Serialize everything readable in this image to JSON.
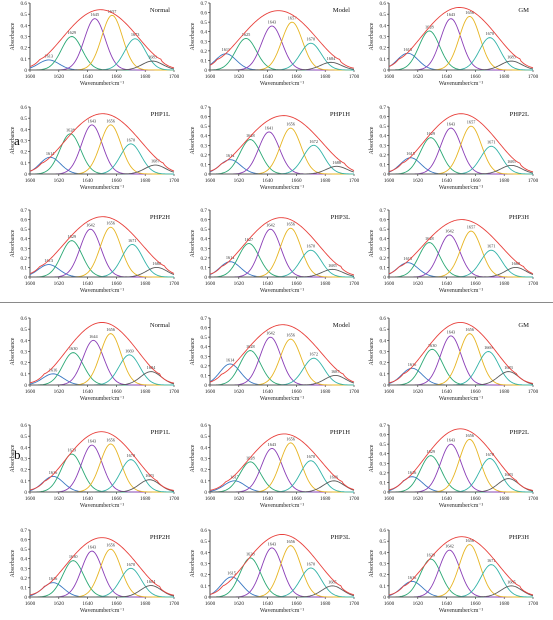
{
  "figure": {
    "section_a_label": "a",
    "section_b_label": "b",
    "colors": {
      "envelope": "#e8413c",
      "component_1": "#3a78c2",
      "component_2": "#2aa874",
      "component_3": "#8b3fb7",
      "component_4": "#e7b523",
      "component_5": "#33b3a8",
      "component_6": "#5a5a5a",
      "axis": "#222222"
    }
  },
  "chart_data": [
    {
      "type": "area",
      "section": "a",
      "title": "Normal",
      "xlabel": "Wavenumber/cm⁻¹",
      "ylabel": "Absorbance",
      "xlim": [
        1600,
        1700
      ],
      "ylim": [
        0,
        0.6
      ],
      "yticks": [
        0,
        0.1,
        0.2,
        0.3,
        0.4,
        0.5,
        0.6
      ],
      "envelope_peak": 0.54,
      "peaks": [
        {
          "center": 1613,
          "height": 0.09,
          "label": "1613"
        },
        {
          "center": 1629,
          "height": 0.3,
          "label": "1629"
        },
        {
          "center": 1645,
          "height": 0.46,
          "label": "1645"
        },
        {
          "center": 1657,
          "height": 0.49,
          "label": "1657"
        },
        {
          "center": 1673,
          "height": 0.28,
          "label": "1673"
        },
        {
          "center": 1685,
          "height": 0.08,
          "label": "1685"
        }
      ]
    },
    {
      "type": "area",
      "section": "a",
      "title": "Model",
      "xlabel": "Wavenumber/cm⁻¹",
      "ylabel": "Absorbance",
      "xlim": [
        1600,
        1700
      ],
      "ylim": [
        0,
        0.7
      ],
      "yticks": [
        0,
        0.1,
        0.2,
        0.3,
        0.4,
        0.5,
        0.6,
        0.7
      ],
      "envelope_peak": 0.62,
      "peaks": [
        {
          "center": 1611,
          "height": 0.17,
          "label": "1611"
        },
        {
          "center": 1625,
          "height": 0.33,
          "label": "1625"
        },
        {
          "center": 1643,
          "height": 0.46,
          "label": "1643"
        },
        {
          "center": 1657,
          "height": 0.5,
          "label": "1657"
        },
        {
          "center": 1670,
          "height": 0.28,
          "label": "1670"
        },
        {
          "center": 1684,
          "height": 0.08,
          "label": "1684"
        }
      ]
    },
    {
      "type": "area",
      "section": "a",
      "title": "GM",
      "xlabel": "Wavenumber/cm⁻¹",
      "ylabel": "Absorbance",
      "xlim": [
        1600,
        1700
      ],
      "ylim": [
        0,
        0.6
      ],
      "yticks": [
        0,
        0.1,
        0.2,
        0.3,
        0.4,
        0.5,
        0.6
      ],
      "envelope_peak": 0.56,
      "peaks": [
        {
          "center": 1613,
          "height": 0.15,
          "label": "1613"
        },
        {
          "center": 1628,
          "height": 0.35,
          "label": "1628"
        },
        {
          "center": 1643,
          "height": 0.46,
          "label": "1643"
        },
        {
          "center": 1656,
          "height": 0.48,
          "label": "1656"
        },
        {
          "center": 1670,
          "height": 0.29,
          "label": "1670"
        },
        {
          "center": 1685,
          "height": 0.08,
          "label": "1685"
        }
      ]
    },
    {
      "type": "area",
      "section": "a",
      "title": "PHP1L",
      "xlabel": "Wavenumber/cm⁻¹",
      "ylabel": "Absorbance",
      "xlim": [
        1600,
        1700
      ],
      "ylim": [
        0,
        0.6
      ],
      "yticks": [
        0,
        0.1,
        0.2,
        0.3,
        0.4,
        0.5,
        0.6
      ],
      "envelope_peak": 0.54,
      "peaks": [
        {
          "center": 1614,
          "height": 0.15,
          "label": "1614"
        },
        {
          "center": 1628,
          "height": 0.36,
          "label": "1628"
        },
        {
          "center": 1643,
          "height": 0.44,
          "label": "1643"
        },
        {
          "center": 1656,
          "height": 0.44,
          "label": "1656"
        },
        {
          "center": 1670,
          "height": 0.27,
          "label": "1670"
        },
        {
          "center": 1687,
          "height": 0.08,
          "label": "1687"
        }
      ]
    },
    {
      "type": "area",
      "section": "a",
      "title": "PHP1H",
      "xlabel": "Wavenumber/cm⁻¹",
      "ylabel": "Absorbance",
      "xlim": [
        1600,
        1700
      ],
      "ylim": [
        0,
        0.7
      ],
      "yticks": [
        0,
        0.1,
        0.2,
        0.3,
        0.4,
        0.5,
        0.6,
        0.7
      ],
      "envelope_peak": 0.61,
      "peaks": [
        {
          "center": 1614,
          "height": 0.15,
          "label": "1614"
        },
        {
          "center": 1628,
          "height": 0.36,
          "label": "1628"
        },
        {
          "center": 1641,
          "height": 0.44,
          "label": "1641"
        },
        {
          "center": 1656,
          "height": 0.48,
          "label": "1656"
        },
        {
          "center": 1672,
          "height": 0.3,
          "label": "1672"
        },
        {
          "center": 1688,
          "height": 0.08,
          "label": "1688"
        }
      ]
    },
    {
      "type": "area",
      "section": "a",
      "title": "PHP2L",
      "xlabel": "Wavenumber/cm⁻¹",
      "ylabel": "Absorbance",
      "xlim": [
        1600,
        1700
      ],
      "ylim": [
        0,
        0.7
      ],
      "yticks": [
        0,
        0.1,
        0.2,
        0.3,
        0.4,
        0.5,
        0.6,
        0.7
      ],
      "envelope_peak": 0.63,
      "peaks": [
        {
          "center": 1615,
          "height": 0.17,
          "label": "1615"
        },
        {
          "center": 1629,
          "height": 0.38,
          "label": "1629"
        },
        {
          "center": 1643,
          "height": 0.48,
          "label": "1643"
        },
        {
          "center": 1657,
          "height": 0.5,
          "label": "1657"
        },
        {
          "center": 1671,
          "height": 0.29,
          "label": "1671"
        },
        {
          "center": 1685,
          "height": 0.09,
          "label": "1685"
        }
      ]
    },
    {
      "type": "area",
      "section": "a",
      "title": "PHP2H",
      "xlabel": "Wavenumber/cm⁻¹",
      "ylabel": "Absorbance",
      "xlim": [
        1600,
        1700
      ],
      "ylim": [
        0,
        0.7
      ],
      "yticks": [
        0,
        0.1,
        0.2,
        0.3,
        0.4,
        0.5,
        0.6,
        0.7
      ],
      "envelope_peak": 0.63,
      "peaks": [
        {
          "center": 1613,
          "height": 0.13,
          "label": "1613"
        },
        {
          "center": 1629,
          "height": 0.38,
          "label": "1629"
        },
        {
          "center": 1642,
          "height": 0.5,
          "label": "1642"
        },
        {
          "center": 1656,
          "height": 0.52,
          "label": "1656"
        },
        {
          "center": 1671,
          "height": 0.34,
          "label": "1671"
        },
        {
          "center": 1688,
          "height": 0.1,
          "label": "1688"
        }
      ]
    },
    {
      "type": "area",
      "section": "a",
      "title": "PHP3L",
      "xlabel": "Wavenumber/cm⁻¹",
      "ylabel": "Absorbance",
      "xlim": [
        1600,
        1700
      ],
      "ylim": [
        0,
        0.7
      ],
      "yticks": [
        0,
        0.1,
        0.2,
        0.3,
        0.4,
        0.5,
        0.6,
        0.7
      ],
      "envelope_peak": 0.62,
      "peaks": [
        {
          "center": 1614,
          "height": 0.16,
          "label": "1614"
        },
        {
          "center": 1627,
          "height": 0.35,
          "label": "1627"
        },
        {
          "center": 1642,
          "height": 0.5,
          "label": "1642"
        },
        {
          "center": 1656,
          "height": 0.51,
          "label": "1656"
        },
        {
          "center": 1670,
          "height": 0.28,
          "label": "1670"
        },
        {
          "center": 1685,
          "height": 0.08,
          "label": "1685"
        }
      ]
    },
    {
      "type": "area",
      "section": "a",
      "title": "PHP3H",
      "xlabel": "Wavenumber/cm⁻¹",
      "ylabel": "Absorbance",
      "xlim": [
        1600,
        1700
      ],
      "ylim": [
        0,
        0.7
      ],
      "yticks": [
        0,
        0.1,
        0.2,
        0.3,
        0.4,
        0.5,
        0.6,
        0.7
      ],
      "envelope_peak": 0.6,
      "peaks": [
        {
          "center": 1613,
          "height": 0.15,
          "label": "1613"
        },
        {
          "center": 1628,
          "height": 0.36,
          "label": "1628"
        },
        {
          "center": 1642,
          "height": 0.44,
          "label": "1642"
        },
        {
          "center": 1657,
          "height": 0.48,
          "label": "1657"
        },
        {
          "center": 1671,
          "height": 0.28,
          "label": "1671"
        },
        {
          "center": 1688,
          "height": 0.1,
          "label": "1688"
        }
      ]
    },
    {
      "type": "area",
      "section": "b",
      "title": "Normal",
      "xlabel": "Wavenumber/cm⁻¹",
      "ylabel": "Absorbance",
      "xlim": [
        1600,
        1700
      ],
      "ylim": [
        0,
        0.6
      ],
      "yticks": [
        0,
        0.1,
        0.2,
        0.3,
        0.4,
        0.5,
        0.6
      ],
      "envelope_peak": 0.56,
      "peaks": [
        {
          "center": 1616,
          "height": 0.1,
          "label": "1616"
        },
        {
          "center": 1630,
          "height": 0.29,
          "label": "1630"
        },
        {
          "center": 1644,
          "height": 0.4,
          "label": "1644"
        },
        {
          "center": 1656,
          "height": 0.46,
          "label": "1656"
        },
        {
          "center": 1669,
          "height": 0.27,
          "label": "1669"
        },
        {
          "center": 1684,
          "height": 0.12,
          "label": "1684"
        }
      ]
    },
    {
      "type": "area",
      "section": "b",
      "title": "Model",
      "xlabel": "Wavenumber/cm⁻¹",
      "ylabel": "Absorbance",
      "xlim": [
        1600,
        1700
      ],
      "ylim": [
        0,
        0.7
      ],
      "yticks": [
        0,
        0.1,
        0.2,
        0.3,
        0.4,
        0.5,
        0.6,
        0.7
      ],
      "envelope_peak": 0.63,
      "peaks": [
        {
          "center": 1614,
          "height": 0.22,
          "label": "1614"
        },
        {
          "center": 1628,
          "height": 0.36,
          "label": "1628"
        },
        {
          "center": 1642,
          "height": 0.5,
          "label": "1642"
        },
        {
          "center": 1656,
          "height": 0.48,
          "label": "1656"
        },
        {
          "center": 1672,
          "height": 0.28,
          "label": "1672"
        },
        {
          "center": 1687,
          "height": 0.1,
          "label": "1687"
        }
      ]
    },
    {
      "type": "area",
      "section": "b",
      "title": "GM",
      "xlabel": "Wavenumber/cm⁻¹",
      "ylabel": "Absorbance",
      "xlim": [
        1600,
        1700
      ],
      "ylim": [
        0,
        0.6
      ],
      "yticks": [
        0,
        0.1,
        0.2,
        0.3,
        0.4,
        0.5,
        0.6
      ],
      "envelope_peak": 0.56,
      "peaks": [
        {
          "center": 1616,
          "height": 0.15,
          "label": "1616"
        },
        {
          "center": 1630,
          "height": 0.32,
          "label": "1630"
        },
        {
          "center": 1643,
          "height": 0.44,
          "label": "1643"
        },
        {
          "center": 1656,
          "height": 0.46,
          "label": "1656"
        },
        {
          "center": 1669,
          "height": 0.3,
          "label": "1669"
        },
        {
          "center": 1683,
          "height": 0.12,
          "label": "1683"
        }
      ]
    },
    {
      "type": "area",
      "section": "b",
      "title": "PHP1L",
      "xlabel": "Wavenumber/cm⁻¹",
      "ylabel": "Absorbance",
      "xlim": [
        1600,
        1700
      ],
      "ylim": [
        0,
        0.6
      ],
      "yticks": [
        0,
        0.1,
        0.2,
        0.3,
        0.4,
        0.5,
        0.6
      ],
      "envelope_peak": 0.54,
      "peaks": [
        {
          "center": 1616,
          "height": 0.14,
          "label": "1616"
        },
        {
          "center": 1629,
          "height": 0.34,
          "label": "1629"
        },
        {
          "center": 1643,
          "height": 0.42,
          "label": "1643"
        },
        {
          "center": 1656,
          "height": 0.43,
          "label": "1656"
        },
        {
          "center": 1670,
          "height": 0.29,
          "label": "1670"
        },
        {
          "center": 1683,
          "height": 0.11,
          "label": "1683"
        }
      ]
    },
    {
      "type": "area",
      "section": "b",
      "title": "PHP1H",
      "xlabel": "Wavenumber/cm⁻¹",
      "ylabel": "Absorbance",
      "xlim": [
        1600,
        1700
      ],
      "ylim": [
        0,
        0.6
      ],
      "yticks": [
        0,
        0.1,
        0.2,
        0.3,
        0.4,
        0.5,
        0.6
      ],
      "envelope_peak": 0.52,
      "peaks": [
        {
          "center": 1617,
          "height": 0.1,
          "label": "1617"
        },
        {
          "center": 1628,
          "height": 0.27,
          "label": "1628"
        },
        {
          "center": 1643,
          "height": 0.39,
          "label": "1643"
        },
        {
          "center": 1656,
          "height": 0.44,
          "label": "1656"
        },
        {
          "center": 1670,
          "height": 0.28,
          "label": "1670"
        },
        {
          "center": 1686,
          "height": 0.1,
          "label": "1686"
        }
      ]
    },
    {
      "type": "area",
      "section": "b",
      "title": "PHP2L",
      "xlabel": "Wavenumber/cm⁻¹",
      "ylabel": "Absorbance",
      "xlim": [
        1600,
        1700
      ],
      "ylim": [
        0,
        0.7
      ],
      "yticks": [
        0,
        0.1,
        0.2,
        0.3,
        0.4,
        0.5,
        0.6,
        0.7
      ],
      "envelope_peak": 0.66,
      "peaks": [
        {
          "center": 1616,
          "height": 0.16,
          "label": "1616"
        },
        {
          "center": 1629,
          "height": 0.38,
          "label": "1629"
        },
        {
          "center": 1643,
          "height": 0.5,
          "label": "1643"
        },
        {
          "center": 1656,
          "height": 0.55,
          "label": "1656"
        },
        {
          "center": 1670,
          "height": 0.35,
          "label": "1670"
        },
        {
          "center": 1683,
          "height": 0.14,
          "label": "1683"
        }
      ]
    },
    {
      "type": "area",
      "section": "b",
      "title": "PHP2H",
      "xlabel": "Wavenumber/cm⁻¹",
      "ylabel": "Absorbance",
      "xlim": [
        1600,
        1700
      ],
      "ylim": [
        0,
        0.7
      ],
      "yticks": [
        0,
        0.1,
        0.2,
        0.3,
        0.4,
        0.5,
        0.6,
        0.7
      ],
      "envelope_peak": 0.62,
      "peaks": [
        {
          "center": 1616,
          "height": 0.15,
          "label": "1616"
        },
        {
          "center": 1630,
          "height": 0.38,
          "label": "1630"
        },
        {
          "center": 1643,
          "height": 0.48,
          "label": "1643"
        },
        {
          "center": 1656,
          "height": 0.5,
          "label": "1656"
        },
        {
          "center": 1670,
          "height": 0.3,
          "label": "1670"
        },
        {
          "center": 1684,
          "height": 0.12,
          "label": "1684"
        }
      ]
    },
    {
      "type": "area",
      "section": "b",
      "title": "PHP3L",
      "xlabel": "Wavenumber/cm⁻¹",
      "ylabel": "Absorbance",
      "xlim": [
        1600,
        1700
      ],
      "ylim": [
        0,
        0.6
      ],
      "yticks": [
        0,
        0.1,
        0.2,
        0.3,
        0.4,
        0.5,
        0.6
      ],
      "envelope_peak": 0.56,
      "peaks": [
        {
          "center": 1615,
          "height": 0.18,
          "label": "1615"
        },
        {
          "center": 1628,
          "height": 0.35,
          "label": "1628"
        },
        {
          "center": 1643,
          "height": 0.44,
          "label": "1643"
        },
        {
          "center": 1656,
          "height": 0.46,
          "label": "1656"
        },
        {
          "center": 1670,
          "height": 0.26,
          "label": "1670"
        },
        {
          "center": 1685,
          "height": 0.1,
          "label": "1685"
        }
      ]
    },
    {
      "type": "area",
      "section": "b",
      "title": "PHP3H",
      "xlabel": "Wavenumber/cm⁻¹",
      "ylabel": "Absorbance",
      "xlim": [
        1600,
        1700
      ],
      "ylim": [
        0,
        0.6
      ],
      "yticks": [
        0,
        0.1,
        0.2,
        0.3,
        0.4,
        0.5,
        0.6
      ],
      "envelope_peak": 0.54,
      "peaks": [
        {
          "center": 1616,
          "height": 0.14,
          "label": "1616"
        },
        {
          "center": 1629,
          "height": 0.34,
          "label": "1629"
        },
        {
          "center": 1642,
          "height": 0.42,
          "label": "1642"
        },
        {
          "center": 1656,
          "height": 0.47,
          "label": "1656"
        },
        {
          "center": 1671,
          "height": 0.29,
          "label": "1671"
        },
        {
          "center": 1685,
          "height": 0.1,
          "label": "1685"
        }
      ]
    }
  ]
}
